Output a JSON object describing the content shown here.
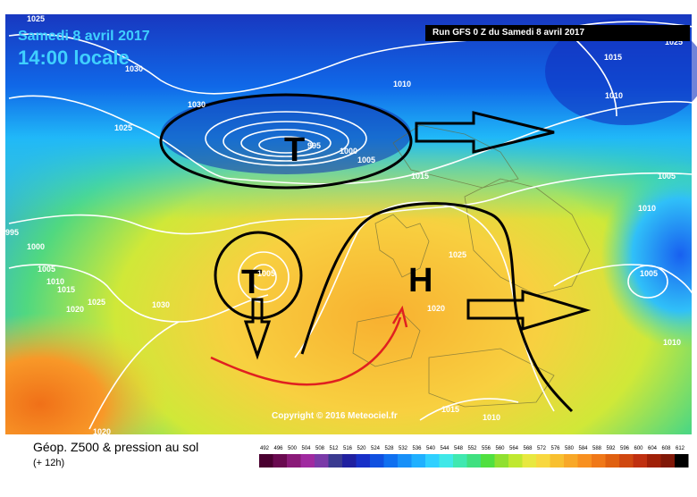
{
  "header": {
    "date_line": "Samedi 8 avril 2017",
    "time_line": "14:00 locale",
    "run_label": "Run GFS 0 Z du Samedi 8 avril 2017"
  },
  "footer": {
    "product_title": "Géop. Z500 & pression au sol",
    "lead_time": "(+ 12h)",
    "copyright": "Copyright © 2016 Meteociel.fr"
  },
  "isobar_labels": [
    {
      "id": "iso-1025-a",
      "text": "1025"
    },
    {
      "id": "iso-1030-a",
      "text": "1030"
    },
    {
      "id": "iso-1025-b",
      "text": "1025"
    },
    {
      "id": "iso-1010-a",
      "text": "1010"
    },
    {
      "id": "iso-1025-c",
      "text": "1025"
    },
    {
      "id": "iso-1030-b",
      "text": "1030"
    },
    {
      "id": "iso-995-a",
      "text": "995"
    },
    {
      "id": "iso-1000-a",
      "text": "1000"
    },
    {
      "id": "iso-1005-a",
      "text": "1005"
    },
    {
      "id": "iso-1015-a",
      "text": "1015"
    },
    {
      "id": "iso-1010-b",
      "text": "1010"
    },
    {
      "id": "iso-1015-b",
      "text": "1015"
    },
    {
      "id": "iso-1020-a",
      "text": "1020"
    },
    {
      "id": "iso-1015-c",
      "text": "1015"
    },
    {
      "id": "iso-1005-b",
      "text": "1005"
    },
    {
      "id": "iso-1010-c",
      "text": "1010"
    },
    {
      "id": "iso-995-b",
      "text": "995"
    },
    {
      "id": "iso-1000-b",
      "text": "1000"
    },
    {
      "id": "iso-1005-c",
      "text": "1005"
    },
    {
      "id": "iso-1010-d",
      "text": "1010"
    },
    {
      "id": "iso-1015-d",
      "text": "1015"
    },
    {
      "id": "iso-1020-b",
      "text": "1020"
    },
    {
      "id": "iso-1025-d",
      "text": "1025"
    },
    {
      "id": "iso-1030-c",
      "text": "1030"
    },
    {
      "id": "iso-1005-d",
      "text": "1005"
    },
    {
      "id": "iso-1025-e",
      "text": "1025"
    },
    {
      "id": "iso-1020-c",
      "text": "1020"
    },
    {
      "id": "iso-1005-e",
      "text": "1005"
    },
    {
      "id": "iso-1010-e",
      "text": "1010"
    },
    {
      "id": "iso-1015-e",
      "text": "1015"
    },
    {
      "id": "iso-1010-f",
      "text": "1010"
    },
    {
      "id": "iso-1020-d",
      "text": "1020"
    }
  ],
  "annotations": {
    "low_north": "T",
    "low_west": "T",
    "high_center": "H"
  },
  "scale": {
    "labels": [
      "492",
      "496",
      "500",
      "504",
      "508",
      "512",
      "516",
      "520",
      "524",
      "528",
      "532",
      "536",
      "540",
      "544",
      "548",
      "552",
      "556",
      "560",
      "564",
      "568",
      "572",
      "576",
      "580",
      "584",
      "588",
      "592",
      "596",
      "600",
      "604",
      "608",
      "612"
    ],
    "colors": [
      "#4a0030",
      "#6a0a50",
      "#8a1a78",
      "#a02aa0",
      "#7a3aa8",
      "#3a3a90",
      "#2020a0",
      "#1830c8",
      "#1050e0",
      "#1070f0",
      "#1890f8",
      "#20b0ff",
      "#30d0ff",
      "#40e8e8",
      "#40e8b0",
      "#40e080",
      "#50e040",
      "#90e030",
      "#c0e830",
      "#e8e840",
      "#f8d840",
      "#f8c030",
      "#f8a828",
      "#f89020",
      "#f07818",
      "#e06010",
      "#d04810",
      "#c03010",
      "#a02008",
      "#801808",
      "#000000"
    ]
  },
  "colors": {
    "date_text": "#3fd0ff",
    "isobar": "#ffffff",
    "annotation": "#000000",
    "red_arrow": "#e02020"
  }
}
